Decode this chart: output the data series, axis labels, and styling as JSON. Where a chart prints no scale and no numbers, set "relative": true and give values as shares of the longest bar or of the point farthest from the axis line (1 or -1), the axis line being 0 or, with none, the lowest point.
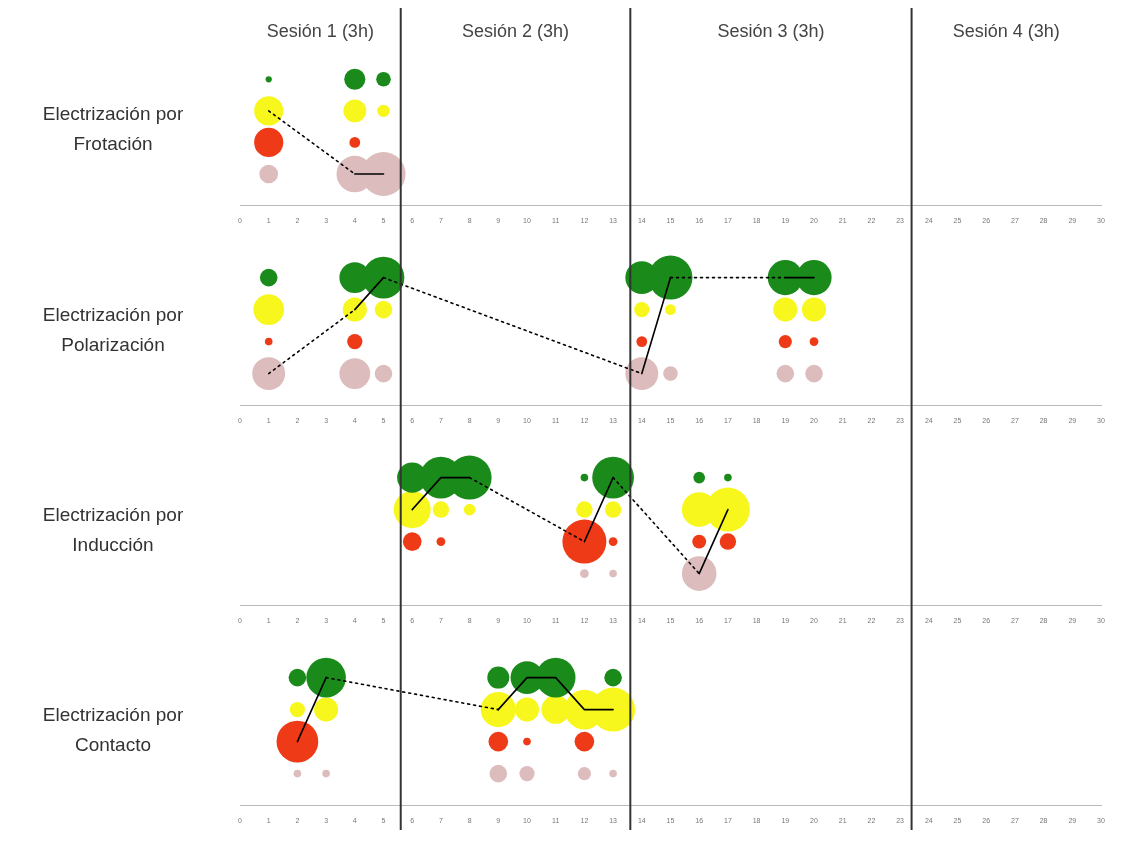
{
  "chart_data": [
    {
      "type": "bubble",
      "ylabel": "Electrización por Frotación",
      "annotations": [
        "Sesión 1 (3h)",
        "Sesión 2 (3h)",
        "Sesión 3 (3h)",
        "Sesión 4 (3h)"
      ],
      "relative": true,
      "legend": false,
      "grid": false,
      "xlim": [
        0,
        30
      ],
      "xticks": [
        0,
        1,
        2,
        3,
        4,
        5,
        6,
        7,
        8,
        9,
        10,
        11,
        12,
        13,
        14,
        15,
        16,
        17,
        18,
        19,
        20,
        21,
        22,
        23,
        24,
        25,
        26,
        27,
        28,
        29,
        30
      ],
      "ref_lines": [
        {
          "axis": "x",
          "value": 5.6,
          "color": "#333333"
        },
        {
          "axis": "x",
          "value": 13.6,
          "color": "#333333"
        },
        {
          "axis": "x",
          "value": 23.4,
          "color": "#333333"
        }
      ],
      "series": [
        {
          "color": "#1a8a1a",
          "x": [
            1,
            4,
            5
          ],
          "values": [
            1,
            1,
            1
          ],
          "sizes": [
            0.02,
            0.23,
            0.11
          ]
        },
        {
          "color": "#f7f71e",
          "x": [
            1,
            4,
            5
          ],
          "values": [
            0.75,
            0.75,
            0.75
          ],
          "sizes": [
            0.44,
            0.27,
            0.08
          ]
        },
        {
          "color": "#ee3a17",
          "x": [
            1,
            4
          ],
          "values": [
            0.5,
            0.5
          ],
          "sizes": [
            0.44,
            0.06
          ]
        },
        {
          "color": "#dcbcbc",
          "x": [
            1,
            4,
            5
          ],
          "values": [
            0.25,
            0.25,
            0.25
          ],
          "sizes": [
            0.18,
            0.69,
            1
          ]
        },
        {
          "type": "line",
          "color": "#000000",
          "line_style": "dotted",
          "marker": "none",
          "x": [
            1,
            4
          ],
          "values": [
            0.75,
            0.25
          ]
        },
        {
          "type": "line",
          "color": "#000000",
          "line_style": "solid",
          "marker": "none",
          "x": [
            4,
            5
          ],
          "values": [
            0.25,
            0.25
          ]
        }
      ]
    },
    {
      "type": "bubble",
      "ylabel": "Electrización por Polarización",
      "relative": true,
      "legend": false,
      "grid": false,
      "xlim": [
        0,
        30
      ],
      "xticks": [
        0,
        1,
        2,
        3,
        4,
        5,
        6,
        7,
        8,
        9,
        10,
        11,
        12,
        13,
        14,
        15,
        16,
        17,
        18,
        19,
        20,
        21,
        22,
        23,
        24,
        25,
        26,
        27,
        28,
        29,
        30
      ],
      "ref_lines": [
        {
          "axis": "x",
          "value": 5.6,
          "color": "#333333"
        },
        {
          "axis": "x",
          "value": 13.6,
          "color": "#333333"
        },
        {
          "axis": "x",
          "value": 23.4,
          "color": "#333333"
        }
      ],
      "series": [
        {
          "color": "#1a8a1a",
          "x": [
            1,
            4,
            5,
            14,
            15,
            19,
            20
          ],
          "values": [
            1,
            1,
            1,
            1,
            1,
            1,
            1
          ],
          "sizes": [
            0.16,
            0.49,
            0.9,
            0.56,
            1,
            0.64,
            0.64
          ]
        },
        {
          "color": "#f7f71e",
          "x": [
            1,
            4,
            5,
            14,
            15,
            19,
            20
          ],
          "values": [
            0.75,
            0.75,
            0.75,
            0.75,
            0.75,
            0.75,
            0.75
          ],
          "sizes": [
            0.49,
            0.3,
            0.16,
            0.12,
            0.06,
            0.3,
            0.3
          ]
        },
        {
          "color": "#ee3a17",
          "x": [
            1,
            4,
            14,
            19,
            20
          ],
          "values": [
            0.5,
            0.5,
            0.5,
            0.5,
            0.5
          ],
          "sizes": [
            0.03,
            0.12,
            0.06,
            0.09,
            0.04
          ]
        },
        {
          "color": "#dcbcbc",
          "x": [
            1,
            4,
            5,
            14,
            15,
            19,
            20
          ],
          "values": [
            0.25,
            0.25,
            0.25,
            0.25,
            0.25,
            0.25,
            0.25
          ],
          "sizes": [
            0.56,
            0.49,
            0.16,
            0.56,
            0.11,
            0.16,
            0.16
          ]
        },
        {
          "type": "line",
          "color": "#000000",
          "line_style": "dotted",
          "marker": "none",
          "x": [
            1,
            4
          ],
          "values": [
            0.25,
            0.75
          ]
        },
        {
          "type": "line",
          "color": "#000000",
          "line_style": "solid",
          "marker": "none",
          "x": [
            4,
            5
          ],
          "values": [
            0.75,
            1
          ]
        },
        {
          "type": "line",
          "color": "#000000",
          "line_style": "dotted",
          "marker": "none",
          "x": [
            5,
            14
          ],
          "values": [
            1,
            0.25
          ]
        },
        {
          "type": "line",
          "color": "#000000",
          "line_style": "solid",
          "marker": "none",
          "x": [
            14,
            15
          ],
          "values": [
            0.25,
            1
          ]
        },
        {
          "type": "line",
          "color": "#000000",
          "line_style": "dotted",
          "marker": "none",
          "x": [
            15,
            19
          ],
          "values": [
            1,
            1
          ]
        },
        {
          "type": "line",
          "color": "#000000",
          "line_style": "solid",
          "marker": "none",
          "x": [
            19,
            20
          ],
          "values": [
            1,
            1
          ]
        }
      ]
    },
    {
      "type": "bubble",
      "ylabel": "Electrización por Inducción",
      "relative": true,
      "legend": false,
      "grid": false,
      "xlim": [
        0,
        30
      ],
      "xticks": [
        0,
        1,
        2,
        3,
        4,
        5,
        6,
        7,
        8,
        9,
        10,
        11,
        12,
        13,
        14,
        15,
        16,
        17,
        18,
        19,
        20,
        21,
        22,
        23,
        24,
        25,
        26,
        27,
        28,
        29,
        30
      ],
      "ref_lines": [
        {
          "axis": "x",
          "value": 5.6,
          "color": "#333333"
        },
        {
          "axis": "x",
          "value": 13.6,
          "color": "#333333"
        },
        {
          "axis": "x",
          "value": 23.4,
          "color": "#333333"
        }
      ],
      "series": [
        {
          "color": "#1a8a1a",
          "x": [
            6,
            7,
            8,
            12,
            13,
            16,
            17
          ],
          "values": [
            1,
            1,
            1,
            1,
            1,
            1,
            1
          ],
          "sizes": [
            0.47,
            0.9,
            1,
            0.03,
            0.9,
            0.07,
            0.03
          ]
        },
        {
          "color": "#f7f71e",
          "x": [
            6,
            7,
            8,
            12,
            13,
            16,
            17
          ],
          "values": [
            0.75,
            0.75,
            0.75,
            0.75,
            0.75,
            0.75,
            0.75
          ],
          "sizes": [
            0.71,
            0.14,
            0.07,
            0.14,
            0.14,
            0.62,
            1
          ]
        },
        {
          "color": "#ee3a17",
          "x": [
            6,
            7,
            12,
            13,
            16,
            17
          ],
          "values": [
            0.5,
            0.5,
            0.5,
            0.5,
            0.5,
            0.5
          ],
          "sizes": [
            0.18,
            0.04,
            1,
            0.04,
            0.1,
            0.14
          ]
        },
        {
          "color": "#dcbcbc",
          "x": [
            12,
            13,
            16
          ],
          "values": [
            0.25,
            0.25,
            0.25
          ],
          "sizes": [
            0.04,
            0.03,
            0.62
          ]
        },
        {
          "type": "line",
          "color": "#000000",
          "line_style": "solid",
          "marker": "none",
          "x": [
            6,
            7,
            8
          ],
          "values": [
            0.75,
            1,
            1
          ]
        },
        {
          "type": "line",
          "color": "#000000",
          "line_style": "dotted",
          "marker": "none",
          "x": [
            8,
            12
          ],
          "values": [
            1,
            0.5
          ]
        },
        {
          "type": "line",
          "color": "#000000",
          "line_style": "solid",
          "marker": "none",
          "x": [
            12,
            13
          ],
          "values": [
            0.5,
            1
          ]
        },
        {
          "type": "line",
          "color": "#000000",
          "line_style": "dotted",
          "marker": "none",
          "x": [
            13,
            16
          ],
          "values": [
            1,
            0.25
          ]
        },
        {
          "type": "line",
          "color": "#000000",
          "line_style": "solid",
          "marker": "none",
          "x": [
            16,
            17
          ],
          "values": [
            0.25,
            0.75
          ]
        }
      ]
    },
    {
      "type": "bubble",
      "ylabel": "Electrización por Contacto",
      "relative": true,
      "legend": false,
      "grid": false,
      "xlim": [
        0,
        30
      ],
      "xticks": [
        0,
        1,
        2,
        3,
        4,
        5,
        6,
        7,
        8,
        9,
        10,
        11,
        12,
        13,
        14,
        15,
        16,
        17,
        18,
        19,
        20,
        21,
        22,
        23,
        24,
        25,
        26,
        27,
        28,
        29,
        30
      ],
      "ref_lines": [
        {
          "axis": "x",
          "value": 5.6,
          "color": "#333333"
        },
        {
          "axis": "x",
          "value": 13.6,
          "color": "#333333"
        },
        {
          "axis": "x",
          "value": 23.4,
          "color": "#333333"
        }
      ],
      "series": [
        {
          "color": "#1a8a1a",
          "x": [
            2,
            3,
            9,
            10,
            11,
            13
          ],
          "values": [
            1,
            1,
            1,
            1,
            1,
            1
          ],
          "sizes": [
            0.16,
            0.81,
            0.25,
            0.56,
            0.81,
            0.16
          ]
        },
        {
          "color": "#f7f71e",
          "x": [
            2,
            3,
            9,
            10,
            11,
            12,
            13
          ],
          "values": [
            0.75,
            0.75,
            0.75,
            0.75,
            0.75,
            0.75,
            0.75
          ],
          "sizes": [
            0.12,
            0.3,
            0.64,
            0.3,
            0.42,
            0.81,
            1
          ]
        },
        {
          "color": "#ee3a17",
          "x": [
            2,
            9,
            10,
            12
          ],
          "values": [
            0.5,
            0.5,
            0.5,
            0.5
          ],
          "sizes": [
            0.9,
            0.2,
            0.03,
            0.2
          ]
        },
        {
          "color": "#dcbcbc",
          "x": [
            2,
            3,
            9,
            10,
            12,
            13
          ],
          "values": [
            0.25,
            0.25,
            0.25,
            0.25,
            0.25,
            0.25
          ],
          "sizes": [
            0.03,
            0.03,
            0.16,
            0.12,
            0.09,
            0.03
          ]
        },
        {
          "type": "line",
          "color": "#000000",
          "line_style": "solid",
          "marker": "none",
          "x": [
            2,
            3
          ],
          "values": [
            0.5,
            1
          ]
        },
        {
          "type": "line",
          "color": "#000000",
          "line_style": "dotted",
          "marker": "none",
          "x": [
            3,
            9
          ],
          "values": [
            1,
            0.75
          ]
        },
        {
          "type": "line",
          "color": "#000000",
          "line_style": "solid",
          "marker": "none",
          "x": [
            9,
            10,
            11,
            12,
            13
          ],
          "values": [
            0.75,
            1,
            1,
            0.75,
            0.75
          ]
        }
      ]
    }
  ]
}
